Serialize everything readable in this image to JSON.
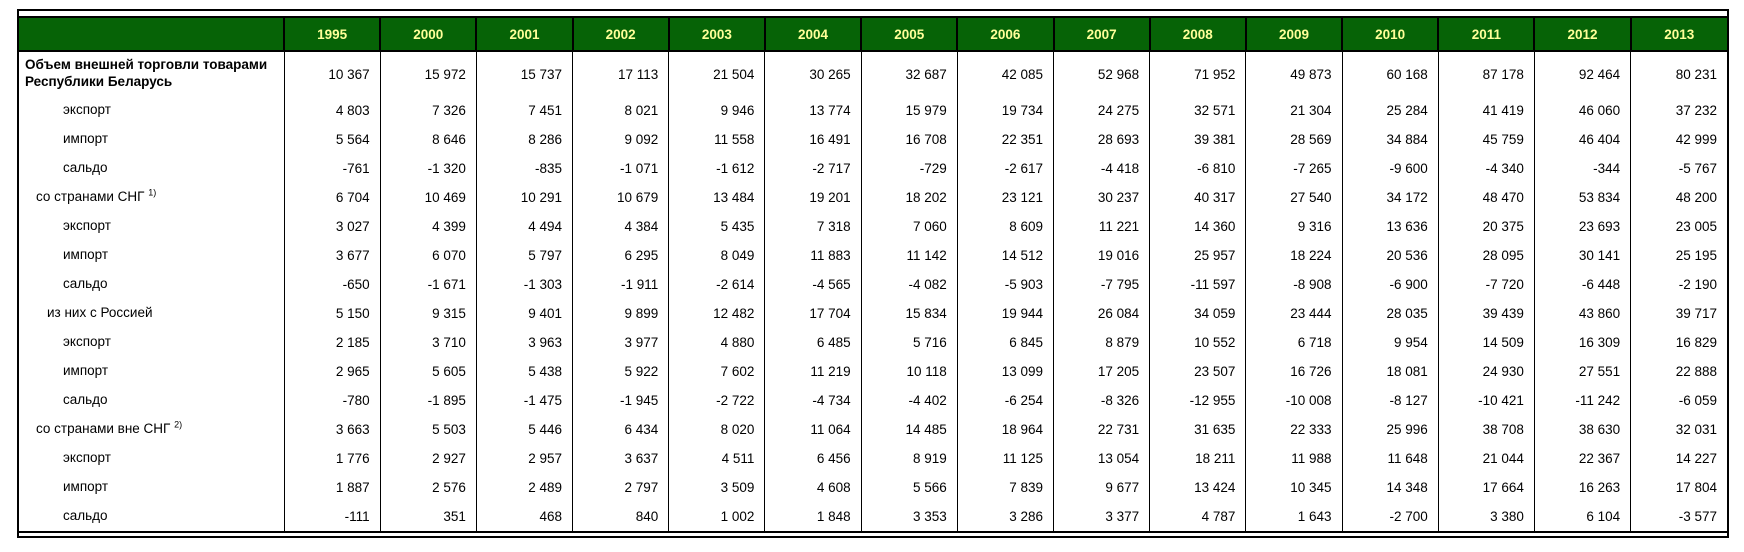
{
  "colors": {
    "header_bg": "#066306",
    "header_text": "#ffff99",
    "border": "#000000",
    "text": "#000000"
  },
  "table": {
    "columns": [
      "1995",
      "2000",
      "2001",
      "2002",
      "2003",
      "2004",
      "2005",
      "2006",
      "2007",
      "2008",
      "2009",
      "2010",
      "2011",
      "2012",
      "2013"
    ],
    "rows": [
      {
        "label": "Объем внешней торговли товарами Республики Беларусь",
        "sup": "",
        "indent": "title",
        "values": [
          "10 367",
          "15 972",
          "15 737",
          "17 113",
          "21 504",
          "30 265",
          "32 687",
          "42 085",
          "52 968",
          "71 952",
          "49 873",
          "60 168",
          "87 178",
          "92 464",
          "80 231"
        ]
      },
      {
        "label": "экспорт",
        "sup": "",
        "indent": "sub",
        "values": [
          "4 803",
          "7 326",
          "7 451",
          "8 021",
          "9 946",
          "13 774",
          "15 979",
          "19 734",
          "24 275",
          "32 571",
          "21 304",
          "25 284",
          "41 419",
          "46 060",
          "37 232"
        ]
      },
      {
        "label": "импорт",
        "sup": "",
        "indent": "sub",
        "values": [
          "5 564",
          "8 646",
          "8 286",
          "9 092",
          "11 558",
          "16 491",
          "16 708",
          "22 351",
          "28 693",
          "39 381",
          "28 569",
          "34 884",
          "45 759",
          "46 404",
          "42 999"
        ]
      },
      {
        "label": "сальдо",
        "sup": "",
        "indent": "sub",
        "values": [
          "-761",
          "-1 320",
          "-835",
          "-1 071",
          "-1 612",
          "-2 717",
          "-729",
          "-2 617",
          "-4 418",
          "-6 810",
          "-7 265",
          "-9 600",
          "-4 340",
          "-344",
          "-5 767"
        ]
      },
      {
        "label": "со странами СНГ",
        "sup": "1)",
        "indent": "group",
        "values": [
          "6 704",
          "10 469",
          "10 291",
          "10 679",
          "13 484",
          "19 201",
          "18 202",
          "23 121",
          "30 237",
          "40 317",
          "27 540",
          "34 172",
          "48 470",
          "53 834",
          "48 200"
        ]
      },
      {
        "label": "экспорт",
        "sup": "",
        "indent": "sub",
        "values": [
          "3 027",
          "4 399",
          "4 494",
          "4 384",
          "5 435",
          "7 318",
          "7 060",
          "8 609",
          "11 221",
          "14 360",
          "9 316",
          "13 636",
          "20 375",
          "23 693",
          "23 005"
        ]
      },
      {
        "label": "импорт",
        "sup": "",
        "indent": "sub",
        "values": [
          "3 677",
          "6 070",
          "5 797",
          "6 295",
          "8 049",
          "11 883",
          "11 142",
          "14 512",
          "19 016",
          "25 957",
          "18 224",
          "20 536",
          "28 095",
          "30 141",
          "25 195"
        ]
      },
      {
        "label": "сальдо",
        "sup": "",
        "indent": "sub",
        "values": [
          "-650",
          "-1 671",
          "-1 303",
          "-1 911",
          "-2 614",
          "-4 565",
          "-4 082",
          "-5 903",
          "-7 795",
          "-11 597",
          "-8 908",
          "-6 900",
          "-7 720",
          "-6 448",
          "-2 190"
        ]
      },
      {
        "label": "из них с Россией",
        "sup": "",
        "indent": "group2",
        "values": [
          "5 150",
          "9 315",
          "9 401",
          "9 899",
          "12 482",
          "17 704",
          "15 834",
          "19 944",
          "26 084",
          "34 059",
          "23 444",
          "28 035",
          "39 439",
          "43 860",
          "39 717"
        ]
      },
      {
        "label": "экспорт",
        "sup": "",
        "indent": "sub",
        "values": [
          "2 185",
          "3 710",
          "3 963",
          "3 977",
          "4 880",
          "6 485",
          "5 716",
          "6 845",
          "8 879",
          "10 552",
          "6 718",
          "9 954",
          "14 509",
          "16 309",
          "16 829"
        ]
      },
      {
        "label": "импорт",
        "sup": "",
        "indent": "sub",
        "values": [
          "2 965",
          "5 605",
          "5 438",
          "5 922",
          "7 602",
          "11 219",
          "10 118",
          "13 099",
          "17 205",
          "23 507",
          "16 726",
          "18 081",
          "24 930",
          "27 551",
          "22 888"
        ]
      },
      {
        "label": "сальдо",
        "sup": "",
        "indent": "sub",
        "values": [
          "-780",
          "-1 895",
          "-1 475",
          "-1 945",
          "-2 722",
          "-4 734",
          "-4 402",
          "-6 254",
          "-8 326",
          "-12 955",
          "-10 008",
          "-8 127",
          "-10 421",
          "-11 242",
          "-6 059"
        ]
      },
      {
        "label": "со странами вне СНГ",
        "sup": "2)",
        "indent": "group",
        "values": [
          "3 663",
          "5 503",
          "5 446",
          "6 434",
          "8 020",
          "11 064",
          "14 485",
          "18 964",
          "22 731",
          "31 635",
          "22 333",
          "25 996",
          "38 708",
          "38 630",
          "32 031"
        ]
      },
      {
        "label": "экспорт",
        "sup": "",
        "indent": "sub",
        "values": [
          "1 776",
          "2 927",
          "2 957",
          "3 637",
          "4 511",
          "6 456",
          "8 919",
          "11 125",
          "13 054",
          "18 211",
          "11 988",
          "11 648",
          "21 044",
          "22 367",
          "14 227"
        ]
      },
      {
        "label": "импорт",
        "sup": "",
        "indent": "sub",
        "values": [
          "1 887",
          "2 576",
          "2 489",
          "2 797",
          "3 509",
          "4 608",
          "5 566",
          "7 839",
          "9 677",
          "13 424",
          "10 345",
          "14 348",
          "17 664",
          "16 263",
          "17 804"
        ]
      },
      {
        "label": "сальдо",
        "sup": "",
        "indent": "sub",
        "values": [
          "-111",
          "351",
          "468",
          "840",
          "1 002",
          "1 848",
          "3 353",
          "3 286",
          "3 377",
          "4 787",
          "1 643",
          "-2 700",
          "3 380",
          "6 104",
          "-3 577"
        ]
      }
    ]
  },
  "chart_data": {
    "type": "table",
    "title": "Объем внешней торговли товарами Республики Беларусь",
    "categories": [
      "1995",
      "2000",
      "2001",
      "2002",
      "2003",
      "2004",
      "2005",
      "2006",
      "2007",
      "2008",
      "2009",
      "2010",
      "2011",
      "2012",
      "2013"
    ],
    "series": [
      {
        "name": "Объем внешней торговли товарами Республики Беларусь",
        "values": [
          10367,
          15972,
          15737,
          17113,
          21504,
          30265,
          32687,
          42085,
          52968,
          71952,
          49873,
          60168,
          87178,
          92464,
          80231
        ]
      },
      {
        "name": "экспорт (всего)",
        "values": [
          4803,
          7326,
          7451,
          8021,
          9946,
          13774,
          15979,
          19734,
          24275,
          32571,
          21304,
          25284,
          41419,
          46060,
          37232
        ]
      },
      {
        "name": "импорт (всего)",
        "values": [
          5564,
          8646,
          8286,
          9092,
          11558,
          16491,
          16708,
          22351,
          28693,
          39381,
          28569,
          34884,
          45759,
          46404,
          42999
        ]
      },
      {
        "name": "сальдо (всего)",
        "values": [
          -761,
          -1320,
          -835,
          -1071,
          -1612,
          -2717,
          -729,
          -2617,
          -4418,
          -6810,
          -7265,
          -9600,
          -4340,
          -344,
          -5767
        ]
      },
      {
        "name": "со странами СНГ 1)",
        "values": [
          6704,
          10469,
          10291,
          10679,
          13484,
          19201,
          18202,
          23121,
          30237,
          40317,
          27540,
          34172,
          48470,
          53834,
          48200
        ]
      },
      {
        "name": "экспорт (СНГ)",
        "values": [
          3027,
          4399,
          4494,
          4384,
          5435,
          7318,
          7060,
          8609,
          11221,
          14360,
          9316,
          13636,
          20375,
          23693,
          23005
        ]
      },
      {
        "name": "импорт (СНГ)",
        "values": [
          3677,
          6070,
          5797,
          6295,
          8049,
          11883,
          11142,
          14512,
          19016,
          25957,
          18224,
          20536,
          28095,
          30141,
          25195
        ]
      },
      {
        "name": "сальдо (СНГ)",
        "values": [
          -650,
          -1671,
          -1303,
          -1911,
          -2614,
          -4565,
          -4082,
          -5903,
          -7795,
          -11597,
          -8908,
          -6900,
          -7720,
          -6448,
          -2190
        ]
      },
      {
        "name": "из них с Россией",
        "values": [
          5150,
          9315,
          9401,
          9899,
          12482,
          17704,
          15834,
          19944,
          26084,
          34059,
          23444,
          28035,
          39439,
          43860,
          39717
        ]
      },
      {
        "name": "экспорт (Россия)",
        "values": [
          2185,
          3710,
          3963,
          3977,
          4880,
          6485,
          5716,
          6845,
          8879,
          10552,
          6718,
          9954,
          14509,
          16309,
          16829
        ]
      },
      {
        "name": "импорт (Россия)",
        "values": [
          2965,
          5605,
          5438,
          5922,
          7602,
          11219,
          10118,
          13099,
          17205,
          23507,
          16726,
          18081,
          24930,
          27551,
          22888
        ]
      },
      {
        "name": "сальдо (Россия)",
        "values": [
          -780,
          -1895,
          -1475,
          -1945,
          -2722,
          -4734,
          -4402,
          -6254,
          -8326,
          -12955,
          -10008,
          -8127,
          -10421,
          -11242,
          -6059
        ]
      },
      {
        "name": "со странами вне СНГ 2)",
        "values": [
          3663,
          5503,
          5446,
          6434,
          8020,
          11064,
          14485,
          18964,
          22731,
          31635,
          22333,
          25996,
          38708,
          38630,
          32031
        ]
      },
      {
        "name": "экспорт (вне СНГ)",
        "values": [
          1776,
          2927,
          2957,
          3637,
          4511,
          6456,
          8919,
          11125,
          13054,
          18211,
          11988,
          11648,
          21044,
          22367,
          14227
        ]
      },
      {
        "name": "импорт (вне СНГ)",
        "values": [
          1887,
          2576,
          2489,
          2797,
          3509,
          4608,
          5566,
          7839,
          9677,
          13424,
          10345,
          14348,
          17664,
          16263,
          17804
        ]
      },
      {
        "name": "сальдо (вне СНГ)",
        "values": [
          -111,
          351,
          468,
          840,
          1002,
          1848,
          3353,
          3286,
          3377,
          4787,
          1643,
          -2700,
          3380,
          6104,
          -3577
        ]
      }
    ]
  }
}
